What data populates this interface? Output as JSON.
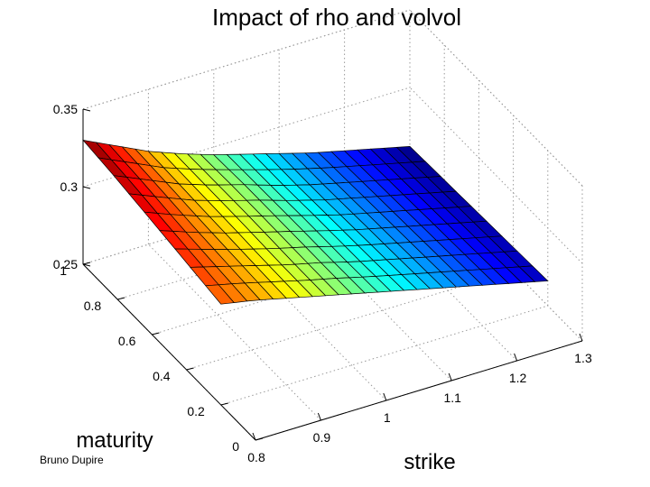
{
  "chart_data": {
    "type": "surface",
    "title": "Impact of rho and volvol",
    "xlabel": "strike",
    "ylabel": "maturity",
    "zlabel": "",
    "x_ticks": [
      "0.8",
      "0.9",
      "1",
      "1.1",
      "1.2",
      "1.3"
    ],
    "y_ticks": [
      "0",
      "0.2",
      "0.4",
      "0.6",
      "0.8",
      "1"
    ],
    "z_ticks": [
      "0.25",
      "0.3",
      "0.35"
    ],
    "xlim": [
      0.8,
      1.3
    ],
    "ylim": [
      0,
      1
    ],
    "zlim": [
      0.25,
      0.35
    ],
    "grid": true,
    "colormap": "jet",
    "surface_x": [
      0.8,
      1.3
    ],
    "surface_y": [
      0.2,
      1.0
    ],
    "z_values": [
      [
        0.315,
        0.311,
        0.306,
        0.301,
        0.296,
        0.291,
        0.286,
        0.281,
        0.276,
        0.271,
        0.266
      ],
      [
        0.319,
        0.313,
        0.307,
        0.301,
        0.296,
        0.29,
        0.285,
        0.28,
        0.275,
        0.27,
        0.265
      ],
      [
        0.323,
        0.315,
        0.308,
        0.302,
        0.296,
        0.29,
        0.284,
        0.279,
        0.274,
        0.269,
        0.264
      ],
      [
        0.327,
        0.318,
        0.309,
        0.302,
        0.296,
        0.289,
        0.283,
        0.278,
        0.273,
        0.268,
        0.263
      ],
      [
        0.33,
        0.32,
        0.31,
        0.302,
        0.295,
        0.289,
        0.283,
        0.277,
        0.272,
        0.267,
        0.262
      ]
    ]
  },
  "colors": {
    "low": "#0000ff",
    "high": "#ff0000"
  },
  "credit": "Bruno Dupire"
}
